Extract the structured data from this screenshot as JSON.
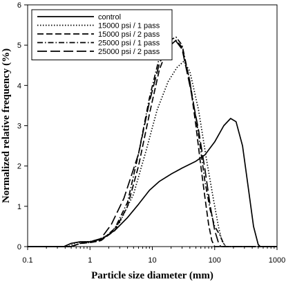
{
  "chart_data": {
    "type": "line",
    "title": "",
    "xlabel": "Particle size diameter (mm)",
    "ylabel": "Normalized relative frequency (%)",
    "x_scale": "log",
    "xlim": [
      0.1,
      1000
    ],
    "ylim": [
      0,
      6
    ],
    "x_ticks": [
      "0.1",
      "1",
      "10",
      "100",
      "1000"
    ],
    "y_ticks": [
      "0",
      "1",
      "2",
      "3",
      "4",
      "5",
      "6"
    ],
    "grid": false,
    "legend_position": "top-left",
    "series": [
      {
        "name": "control",
        "dash": "solid",
        "points": [
          [
            0.1,
            0
          ],
          [
            0.38,
            0
          ],
          [
            0.5,
            0.08
          ],
          [
            0.7,
            0.12
          ],
          [
            1.0,
            0.12
          ],
          [
            1.5,
            0.18
          ],
          [
            2.5,
            0.4
          ],
          [
            4,
            0.72
          ],
          [
            6,
            1.05
          ],
          [
            9,
            1.4
          ],
          [
            13,
            1.62
          ],
          [
            20,
            1.8
          ],
          [
            30,
            1.95
          ],
          [
            50,
            2.12
          ],
          [
            70,
            2.28
          ],
          [
            100,
            2.6
          ],
          [
            140,
            3.0
          ],
          [
            180,
            3.18
          ],
          [
            220,
            3.1
          ],
          [
            280,
            2.5
          ],
          [
            350,
            1.4
          ],
          [
            420,
            0.5
          ],
          [
            500,
            0.05
          ],
          [
            540,
            0
          ],
          [
            1000,
            0
          ]
        ]
      },
      {
        "name": "15000 psi / 1 pass",
        "dash": "dotted",
        "points": [
          [
            0.1,
            0
          ],
          [
            0.45,
            0
          ],
          [
            0.6,
            0.1
          ],
          [
            0.9,
            0.12
          ],
          [
            1.3,
            0.15
          ],
          [
            2,
            0.3
          ],
          [
            3,
            0.6
          ],
          [
            5,
            1.3
          ],
          [
            8,
            2.4
          ],
          [
            12,
            3.4
          ],
          [
            18,
            4.1
          ],
          [
            25,
            4.45
          ],
          [
            32,
            4.6
          ],
          [
            40,
            4.35
          ],
          [
            55,
            3.4
          ],
          [
            75,
            2.1
          ],
          [
            95,
            1.2
          ],
          [
            115,
            0.5
          ],
          [
            130,
            0.15
          ],
          [
            150,
            0
          ],
          [
            1000,
            0
          ]
        ]
      },
      {
        "name": "15000 psi / 2 pass",
        "dash": "dashed",
        "points": [
          [
            0.1,
            0
          ],
          [
            0.5,
            0
          ],
          [
            0.7,
            0.08
          ],
          [
            1.0,
            0.1
          ],
          [
            1.5,
            0.15
          ],
          [
            2.5,
            0.4
          ],
          [
            4,
            1.0
          ],
          [
            6,
            2.0
          ],
          [
            9,
            3.3
          ],
          [
            13,
            4.4
          ],
          [
            18,
            4.95
          ],
          [
            24,
            5.12
          ],
          [
            30,
            4.95
          ],
          [
            40,
            4.1
          ],
          [
            50,
            3.0
          ],
          [
            60,
            2.0
          ],
          [
            70,
            1.2
          ],
          [
            80,
            0.55
          ],
          [
            90,
            0.15
          ],
          [
            100,
            0
          ],
          [
            1000,
            0
          ]
        ]
      },
      {
        "name": "25000 psi / 1 pass",
        "dash": "dashdot",
        "points": [
          [
            0.1,
            0
          ],
          [
            0.5,
            0
          ],
          [
            0.7,
            0.08
          ],
          [
            1.0,
            0.1
          ],
          [
            1.5,
            0.15
          ],
          [
            2.5,
            0.45
          ],
          [
            4,
            1.1
          ],
          [
            6,
            2.3
          ],
          [
            9,
            3.7
          ],
          [
            13,
            4.7
          ],
          [
            18,
            5.1
          ],
          [
            24,
            5.2
          ],
          [
            30,
            5.0
          ],
          [
            40,
            4.1
          ],
          [
            55,
            2.8
          ],
          [
            70,
            1.6
          ],
          [
            85,
            0.9
          ],
          [
            100,
            0.5
          ],
          [
            120,
            0.3
          ],
          [
            135,
            0.12
          ],
          [
            150,
            0
          ],
          [
            1000,
            0
          ]
        ]
      },
      {
        "name": "25000 psi / 2 pass",
        "dash": "longdash",
        "points": [
          [
            0.1,
            0
          ],
          [
            0.5,
            0
          ],
          [
            0.7,
            0.08
          ],
          [
            1.0,
            0.12
          ],
          [
            1.5,
            0.2
          ],
          [
            2.2,
            0.55
          ],
          [
            3.5,
            1.2
          ],
          [
            6,
            2.3
          ],
          [
            9,
            3.6
          ],
          [
            13,
            4.55
          ],
          [
            18,
            5.0
          ],
          [
            24,
            5.1
          ],
          [
            30,
            4.9
          ],
          [
            40,
            4.0
          ],
          [
            55,
            2.9
          ],
          [
            70,
            1.9
          ],
          [
            85,
            1.0
          ],
          [
            100,
            0.4
          ],
          [
            115,
            0.1
          ],
          [
            125,
            0
          ],
          [
            1000,
            0
          ]
        ]
      }
    ]
  }
}
